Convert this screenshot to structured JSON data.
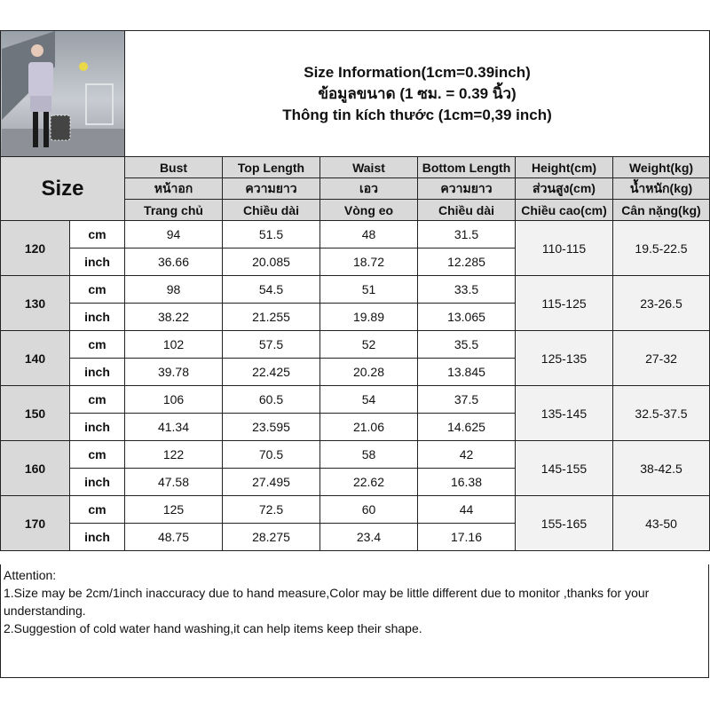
{
  "title": {
    "line1": "Size Information(1cm=0.39inch)",
    "line2": "ข้อมูลขนาด (1 ซม. = 0.39 นิ้ว)",
    "line3": "Thông tin kích thước (1cm=0,39 inch)"
  },
  "size_label": "Size",
  "columns": [
    {
      "en": "Bust",
      "th": "หน้าอก",
      "vi": "Trang chủ"
    },
    {
      "en": "Top Length",
      "th": "ความยาว",
      "vi": "Chiều dài"
    },
    {
      "en": "Waist",
      "th": "เอว",
      "vi": "Vòng eo"
    },
    {
      "en": "Bottom Length",
      "th": "ความยาว",
      "vi": "Chiều dài"
    },
    {
      "en": "Height(cm)",
      "th": "ส่วนสูง(cm)",
      "vi": "Chiều cao(cm)"
    },
    {
      "en": "Weight(kg)",
      "th": "น้ำหนัก(kg)",
      "vi": "Cân nặng(kg)"
    }
  ],
  "units": {
    "cm": "cm",
    "inch": "inch"
  },
  "rows": [
    {
      "size": "120",
      "cm": [
        "94",
        "51.5",
        "48",
        "31.5"
      ],
      "inch": [
        "36.66",
        "20.085",
        "18.72",
        "12.285"
      ],
      "height": "110-115",
      "weight": "19.5-22.5"
    },
    {
      "size": "130",
      "cm": [
        "98",
        "54.5",
        "51",
        "33.5"
      ],
      "inch": [
        "38.22",
        "21.255",
        "19.89",
        "13.065"
      ],
      "height": "115-125",
      "weight": "23-26.5"
    },
    {
      "size": "140",
      "cm": [
        "102",
        "57.5",
        "52",
        "35.5"
      ],
      "inch": [
        "39.78",
        "22.425",
        "20.28",
        "13.845"
      ],
      "height": "125-135",
      "weight": "27-32"
    },
    {
      "size": "150",
      "cm": [
        "106",
        "60.5",
        "54",
        "37.5"
      ],
      "inch": [
        "41.34",
        "23.595",
        "21.06",
        "14.625"
      ],
      "height": "135-145",
      "weight": "32.5-37.5"
    },
    {
      "size": "160",
      "cm": [
        "122",
        "70.5",
        "58",
        "42"
      ],
      "inch": [
        "47.58",
        "27.495",
        "22.62",
        "16.38"
      ],
      "height": "145-155",
      "weight": "38-42.5"
    },
    {
      "size": "170",
      "cm": [
        "125",
        "72.5",
        "60",
        "44"
      ],
      "inch": [
        "48.75",
        "28.275",
        "23.4",
        "17.16"
      ],
      "height": "155-165",
      "weight": "43-50"
    }
  ],
  "notes": {
    "heading": "Attention:",
    "items": [
      "1.Size may be 2cm/1inch inaccuracy due to hand measure,Color may be little different due to monitor ,thanks for your understanding.",
      "2.Suggestion of cold water hand washing,it can help items keep their shape."
    ]
  }
}
